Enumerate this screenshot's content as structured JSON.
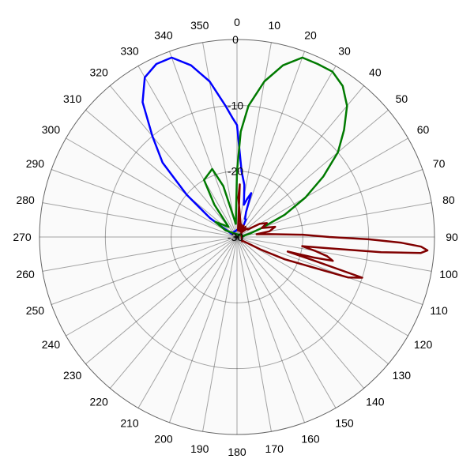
{
  "chart_data": {
    "type": "polar-line",
    "title": "",
    "angle_direction": "clockwise",
    "zero_angle": "top",
    "angle_ticks": [
      "0",
      "10",
      "20",
      "30",
      "40",
      "50",
      "60",
      "70",
      "80",
      "90",
      "100",
      "110",
      "120",
      "130",
      "140",
      "150",
      "160",
      "170",
      "180",
      "190",
      "200",
      "210",
      "220",
      "230",
      "240",
      "250",
      "260",
      "270",
      "280",
      "290",
      "300",
      "310",
      "320",
      "330",
      "340",
      "350"
    ],
    "radial_range": [
      -30,
      0
    ],
    "radial_ticks": [
      "0",
      "-10",
      "-20",
      "-30"
    ],
    "grid": true,
    "colors": {
      "background": "#ffffff",
      "plot_area": "#fafafa",
      "grid": "#000000"
    },
    "series": [
      {
        "color": "#0000ff",
        "angles": [
          300,
          305,
          310,
          315,
          320,
          325,
          330,
          335,
          340,
          345,
          350,
          355,
          358,
          0,
          4,
          8,
          12,
          15,
          18,
          20,
          24,
          27,
          30
        ],
        "values": [
          -29,
          -25,
          -20,
          -14,
          -10,
          -5,
          -2,
          -1,
          -1,
          -3,
          -6,
          -10,
          -12,
          -13,
          -20,
          -22,
          -25,
          -24,
          -23,
          -26,
          -27,
          -27,
          -28
        ]
      },
      {
        "color": "#007a00",
        "angles": [
          0,
          2,
          5,
          10,
          15,
          20,
          25,
          30,
          35,
          40,
          45,
          50,
          55,
          60,
          65,
          70,
          75,
          80,
          85,
          300,
          305,
          310,
          320,
          325,
          330,
          340,
          345,
          355
        ],
        "values": [
          -20,
          -14,
          -10,
          -6,
          -3,
          -1,
          -1,
          -1,
          -2,
          -4,
          -7,
          -10,
          -14,
          -18,
          -22,
          -26,
          -28,
          -29,
          -29,
          -28,
          -26,
          -27,
          -28,
          -24,
          -20,
          -19,
          -22,
          -28
        ]
      },
      {
        "color": "#800000",
        "angles": [
          2,
          3,
          4,
          6,
          8,
          10,
          15,
          20,
          25,
          30,
          35,
          40,
          45,
          50,
          55,
          60,
          65,
          70,
          75,
          80,
          82,
          85,
          88,
          90,
          91,
          92,
          93,
          94,
          95,
          96,
          97,
          98,
          100,
          102,
          104,
          105,
          106,
          107,
          108,
          110,
          112,
          115,
          118,
          120,
          125,
          130
        ],
        "values": [
          -24,
          -22,
          -26,
          -28,
          -29,
          -28,
          -29,
          -28,
          -29,
          -28,
          -29,
          -28,
          -29,
          -28,
          -28,
          -26,
          -25,
          -26,
          -24,
          -25,
          -27,
          -25,
          -20,
          -16,
          -10,
          -5,
          -2,
          -1,
          -2,
          -8,
          -16,
          -20,
          -18,
          -16,
          -15,
          -18,
          -22,
          -18,
          -10,
          -12,
          -18,
          -22,
          -26,
          -28,
          -29,
          -29
        ]
      }
    ]
  }
}
